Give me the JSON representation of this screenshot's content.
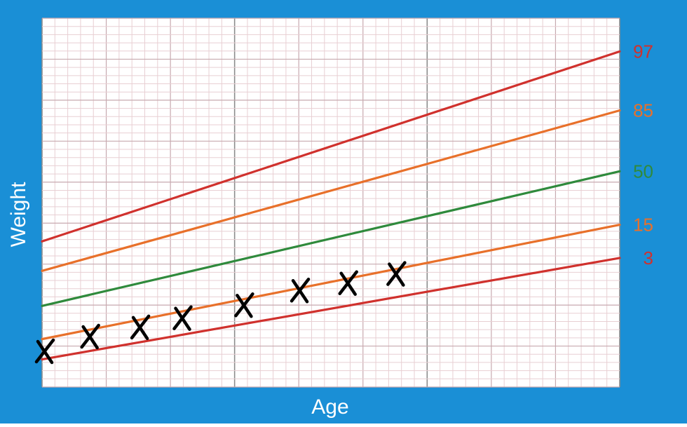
{
  "colors": {
    "frame": "#1a8fd6",
    "grid_minor": "#e8cfd3",
    "grid_major": "#c7a9af",
    "grid_strong": "#8c8c8c",
    "plot_bg": "#ffffff"
  },
  "chart_data": {
    "type": "line",
    "title": "",
    "xlabel": "Age",
    "ylabel": "Weight",
    "xlim": [
      0,
      30
    ],
    "ylim": [
      0,
      100
    ],
    "grid": true,
    "tick_labels_shown": false,
    "series": [
      {
        "name": "97",
        "color": "#d0312d",
        "x": [
          0,
          30
        ],
        "y": [
          39.5,
          91
        ]
      },
      {
        "name": "85",
        "color": "#e8702a",
        "x": [
          0,
          30
        ],
        "y": [
          31.5,
          75
        ]
      },
      {
        "name": "50",
        "color": "#2f8a3c",
        "x": [
          0,
          30
        ],
        "y": [
          22,
          58.5
        ]
      },
      {
        "name": "15",
        "color": "#e8702a",
        "x": [
          0,
          30
        ],
        "y": [
          13,
          44
        ]
      },
      {
        "name": "3",
        "color": "#d0312d",
        "x": [
          0,
          30
        ],
        "y": [
          7.5,
          35
        ]
      }
    ],
    "points": {
      "marker": "X",
      "x": [
        0.1,
        2.5,
        5.1,
        7.3,
        10.5,
        13.4,
        15.9,
        18.4
      ],
      "y": [
        9.5,
        13.5,
        16,
        18.5,
        22,
        26,
        28,
        30.5
      ]
    }
  }
}
